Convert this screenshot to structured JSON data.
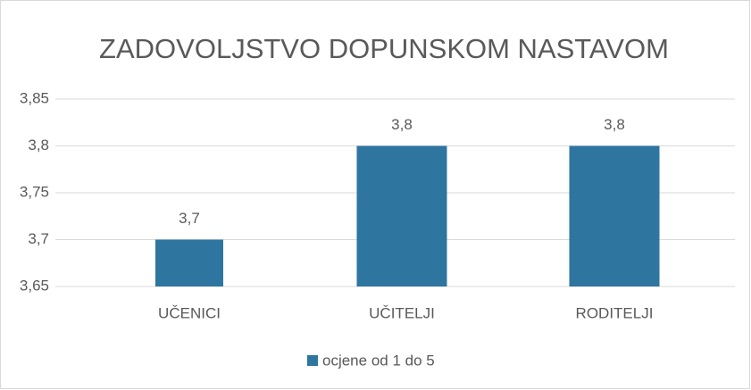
{
  "chart_data": {
    "type": "bar",
    "title": "ZADOVOLJSTVO DOPUNSKOM NASTAVOM",
    "categories": [
      "UČENICI",
      "UČITELJI",
      "RODITELJI"
    ],
    "series": [
      {
        "name": "ocjene od 1 do 5",
        "color": "#2e75a0",
        "values": [
          3.7,
          3.8,
          3.8
        ],
        "value_labels": [
          "3,7",
          "3,8",
          "3,8"
        ]
      }
    ],
    "ylim": [
      3.65,
      3.85
    ],
    "yticks": [
      {
        "value": 3.65,
        "label": "3,65"
      },
      {
        "value": 3.7,
        "label": "3,7"
      },
      {
        "value": 3.75,
        "label": "3,75"
      },
      {
        "value": 3.8,
        "label": "3,8"
      },
      {
        "value": 3.85,
        "label": "3,85"
      }
    ],
    "grid": true,
    "legend": "bottom"
  }
}
